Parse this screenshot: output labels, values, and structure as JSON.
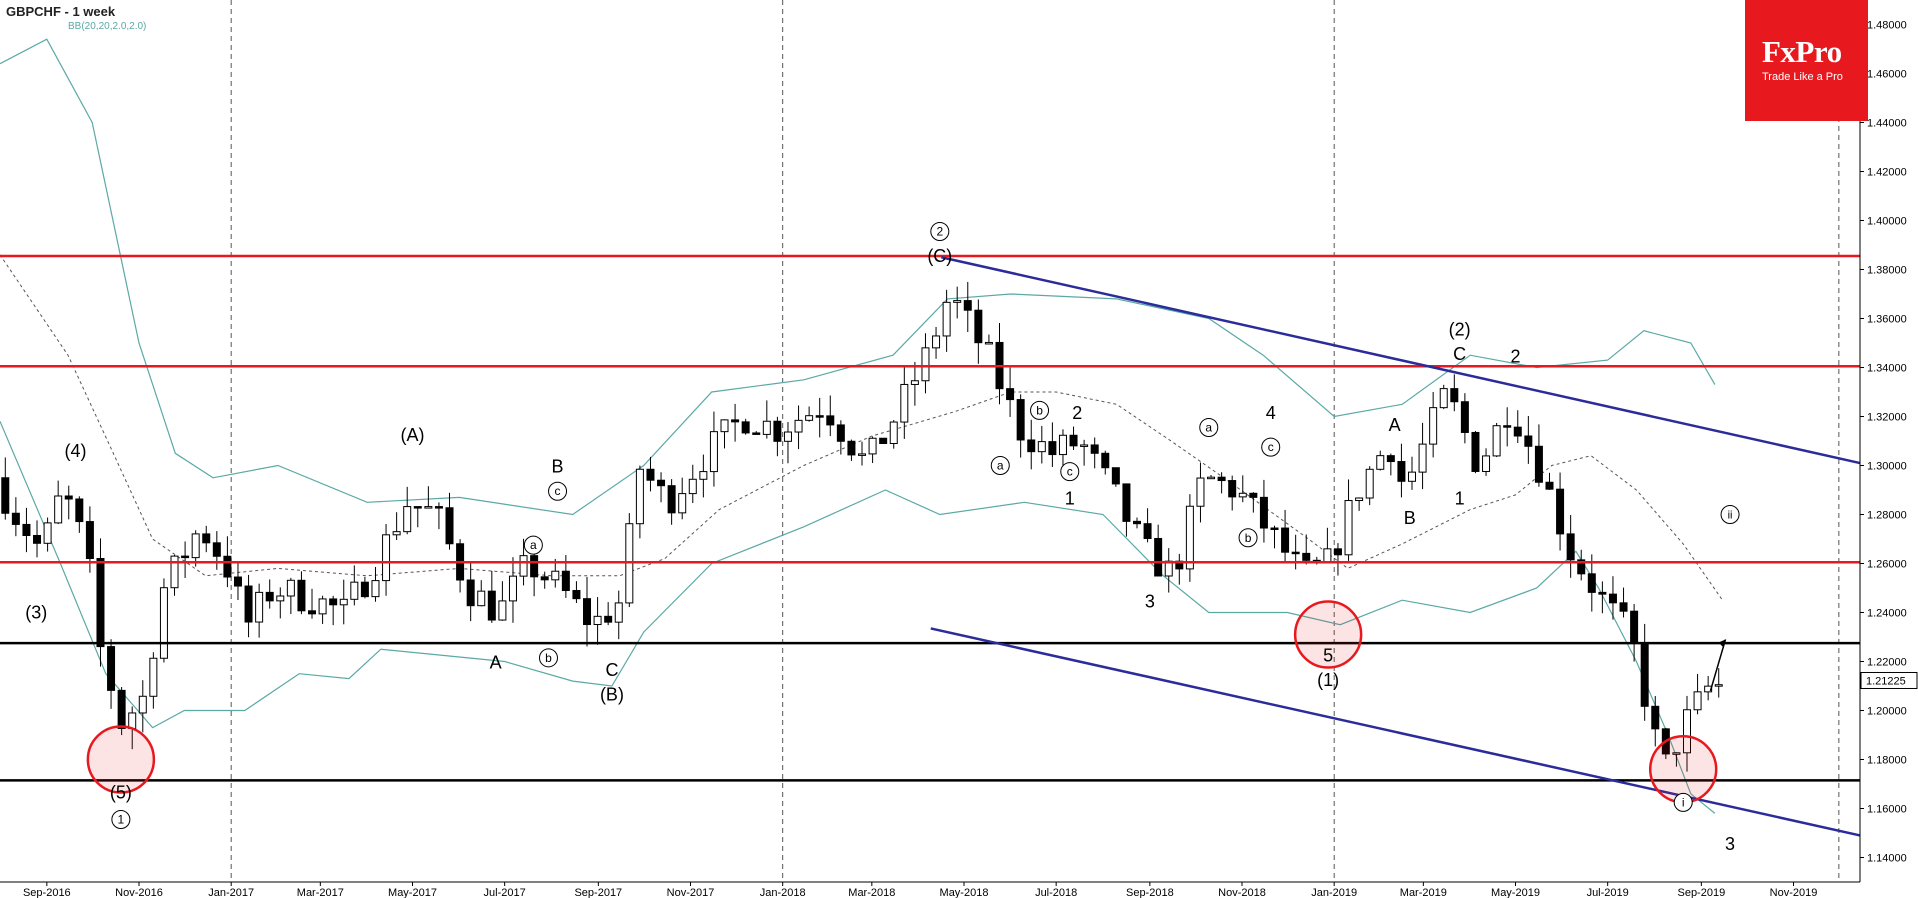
{
  "header": {
    "symbol": "GBPCHF - 1 week",
    "indicator": "BB(20,20,2.0,2.0)"
  },
  "logo": {
    "brand": "FxPro",
    "tagline": "Trade Like a Pro"
  },
  "colors": {
    "red_lines": "#e8191e",
    "black_lines": "#000000",
    "channel": "#2b2b9a",
    "bollinger": "#5aa9a5",
    "midband": "#555555",
    "logo_bg": "#e8191e"
  },
  "chart_data": {
    "type": "candlestick",
    "title": "GBPCHF - 1 week",
    "ylim": [
      1.13,
      1.49
    ],
    "y_ticks": [
      "1.48000",
      "1.46000",
      "1.44000",
      "1.42000",
      "1.40000",
      "1.38000",
      "1.36000",
      "1.34000",
      "1.32000",
      "1.30000",
      "1.28000",
      "1.26000",
      "1.24000",
      "1.22000",
      "1.20000",
      "1.18000",
      "1.16000",
      "1.14000"
    ],
    "x_range": [
      "2016-08-01",
      "2019-12-15"
    ],
    "x_ticks": [
      {
        "label": "Sep-2016",
        "date": "2016-09-01"
      },
      {
        "label": "Nov-2016",
        "date": "2016-11-01"
      },
      {
        "label": "Jan-2017",
        "date": "2017-01-01"
      },
      {
        "label": "Mar-2017",
        "date": "2017-03-01"
      },
      {
        "label": "May-2017",
        "date": "2017-05-01"
      },
      {
        "label": "Jul-2017",
        "date": "2017-07-01"
      },
      {
        "label": "Sep-2017",
        "date": "2017-09-01"
      },
      {
        "label": "Nov-2017",
        "date": "2017-11-01"
      },
      {
        "label": "Jan-2018",
        "date": "2018-01-01"
      },
      {
        "label": "Mar-2018",
        "date": "2018-03-01"
      },
      {
        "label": "May-2018",
        "date": "2018-05-01"
      },
      {
        "label": "Jul-2018",
        "date": "2018-07-01"
      },
      {
        "label": "Sep-2018",
        "date": "2018-09-01"
      },
      {
        "label": "Nov-2018",
        "date": "2018-11-01"
      },
      {
        "label": "Jan-2019",
        "date": "2019-01-01"
      },
      {
        "label": "Mar-2019",
        "date": "2019-03-01"
      },
      {
        "label": "May-2019",
        "date": "2019-05-01"
      },
      {
        "label": "Jul-2019",
        "date": "2019-07-01"
      },
      {
        "label": "Sep-2019",
        "date": "2019-09-01"
      },
      {
        "label": "Nov-2019",
        "date": "2019-11-01"
      }
    ],
    "vertical_dashed_lines": [
      "2017-01-01",
      "2018-01-01",
      "2019-01-01",
      "2019-12-01"
    ],
    "current_price": "1.21225",
    "price_path": [
      [
        "2016-08-01",
        1.295
      ],
      [
        "2016-08-15",
        1.28
      ],
      [
        "2016-09-01",
        1.265
      ],
      [
        "2016-09-15",
        1.29
      ],
      [
        "2016-10-01",
        1.265
      ],
      [
        "2016-10-10",
        1.225
      ],
      [
        "2016-10-24",
        1.195
      ],
      [
        "2016-11-07",
        1.205
      ],
      [
        "2016-11-21",
        1.25
      ],
      [
        "2016-12-15",
        1.275
      ],
      [
        "2017-01-01",
        1.26
      ],
      [
        "2017-01-15",
        1.235
      ],
      [
        "2017-02-01",
        1.25
      ],
      [
        "2017-03-01",
        1.245
      ],
      [
        "2017-03-20",
        1.24
      ],
      [
        "2017-04-10",
        1.26
      ],
      [
        "2017-05-01",
        1.285
      ],
      [
        "2017-05-20",
        1.28
      ],
      [
        "2017-06-10",
        1.25
      ],
      [
        "2017-07-01",
        1.24
      ],
      [
        "2017-07-20",
        1.26
      ],
      [
        "2017-08-10",
        1.25
      ],
      [
        "2017-09-01",
        1.235
      ],
      [
        "2017-09-20",
        1.245
      ],
      [
        "2017-10-01",
        1.3
      ],
      [
        "2017-10-20",
        1.285
      ],
      [
        "2017-11-15",
        1.305
      ],
      [
        "2017-12-10",
        1.32
      ],
      [
        "2018-01-01",
        1.315
      ],
      [
        "2018-02-01",
        1.325
      ],
      [
        "2018-03-01",
        1.3
      ],
      [
        "2018-03-20",
        1.32
      ],
      [
        "2018-04-10",
        1.345
      ],
      [
        "2018-04-25",
        1.37
      ],
      [
        "2018-05-20",
        1.345
      ],
      [
        "2018-06-10",
        1.315
      ],
      [
        "2018-07-01",
        1.305
      ],
      [
        "2018-07-20",
        1.31
      ],
      [
        "2018-08-10",
        1.29
      ],
      [
        "2018-09-01",
        1.265
      ],
      [
        "2018-09-20",
        1.255
      ],
      [
        "2018-10-10",
        1.295
      ],
      [
        "2018-11-01",
        1.29
      ],
      [
        "2018-11-20",
        1.275
      ],
      [
        "2018-12-15",
        1.255
      ],
      [
        "2019-01-01",
        1.26
      ],
      [
        "2019-01-20",
        1.29
      ],
      [
        "2019-02-10",
        1.31
      ],
      [
        "2019-02-20",
        1.29
      ],
      [
        "2019-03-20",
        1.33
      ],
      [
        "2019-04-10",
        1.3
      ],
      [
        "2019-05-01",
        1.325
      ],
      [
        "2019-05-20",
        1.3
      ],
      [
        "2019-06-10",
        1.265
      ],
      [
        "2019-07-01",
        1.245
      ],
      [
        "2019-07-20",
        1.23
      ],
      [
        "2019-08-10",
        1.175
      ],
      [
        "2019-08-25",
        1.195
      ],
      [
        "2019-09-10",
        1.21
      ]
    ],
    "horizontal_levels": [
      {
        "price": 1.3855,
        "color": "red"
      },
      {
        "price": 1.3405,
        "color": "red"
      },
      {
        "price": 1.2605,
        "color": "red"
      },
      {
        "price": 1.2275,
        "color": "black"
      },
      {
        "price": 1.1715,
        "color": "black"
      }
    ],
    "channel_lines": [
      {
        "from": [
          "2018-04-16",
          1.385
        ],
        "to": [
          "2019-12-15",
          1.301
        ]
      },
      {
        "from": [
          "2018-04-09",
          1.2335
        ],
        "to": [
          "2019-12-15",
          1.149
        ]
      }
    ],
    "bollinger_upper": [
      [
        "2016-08-01",
        1.464
      ],
      [
        "2016-09-01",
        1.474
      ],
      [
        "2016-10-01",
        1.44
      ],
      [
        "2016-11-01",
        1.35
      ],
      [
        "2016-11-25",
        1.305
      ],
      [
        "2016-12-20",
        1.295
      ],
      [
        "2017-02-01",
        1.3
      ],
      [
        "2017-04-01",
        1.285
      ],
      [
        "2017-06-01",
        1.287
      ],
      [
        "2017-08-15",
        1.28
      ],
      [
        "2017-10-01",
        1.3
      ],
      [
        "2017-11-15",
        1.33
      ],
      [
        "2018-01-15",
        1.335
      ],
      [
        "2018-03-15",
        1.345
      ],
      [
        "2018-04-20",
        1.368
      ],
      [
        "2018-06-01",
        1.37
      ],
      [
        "2018-08-10",
        1.368
      ],
      [
        "2018-10-10",
        1.36
      ],
      [
        "2018-11-15",
        1.345
      ],
      [
        "2019-01-01",
        1.32
      ],
      [
        "2019-02-15",
        1.325
      ],
      [
        "2019-04-01",
        1.345
      ],
      [
        "2019-05-15",
        1.34
      ],
      [
        "2019-07-01",
        1.343
      ],
      [
        "2019-07-25",
        1.355
      ],
      [
        "2019-08-25",
        1.35
      ],
      [
        "2019-09-10",
        1.333
      ]
    ],
    "bollinger_lower": [
      [
        "2016-08-01",
        1.318
      ],
      [
        "2016-09-10",
        1.26
      ],
      [
        "2016-10-10",
        1.215
      ],
      [
        "2016-11-10",
        1.193
      ],
      [
        "2016-12-01",
        1.2
      ],
      [
        "2017-01-10",
        1.2
      ],
      [
        "2017-02-15",
        1.215
      ],
      [
        "2017-03-20",
        1.213
      ],
      [
        "2017-04-10",
        1.225
      ],
      [
        "2017-07-01",
        1.22
      ],
      [
        "2017-08-15",
        1.212
      ],
      [
        "2017-09-10",
        1.21
      ],
      [
        "2017-10-01",
        1.232
      ],
      [
        "2017-11-15",
        1.26
      ],
      [
        "2018-01-15",
        1.275
      ],
      [
        "2018-03-10",
        1.29
      ],
      [
        "2018-04-15",
        1.28
      ],
      [
        "2018-06-10",
        1.285
      ],
      [
        "2018-08-01",
        1.28
      ],
      [
        "2018-09-10",
        1.255
      ],
      [
        "2018-10-10",
        1.24
      ],
      [
        "2018-12-01",
        1.24
      ],
      [
        "2019-01-05",
        1.235
      ],
      [
        "2019-02-15",
        1.245
      ],
      [
        "2019-04-01",
        1.24
      ],
      [
        "2019-05-15",
        1.25
      ],
      [
        "2019-06-10",
        1.265
      ],
      [
        "2019-06-25",
        1.25
      ],
      [
        "2019-07-20",
        1.22
      ],
      [
        "2019-08-10",
        1.19
      ],
      [
        "2019-08-25",
        1.166
      ],
      [
        "2019-09-10",
        1.158
      ]
    ],
    "bollinger_mid": [
      [
        "2016-08-01",
        1.386
      ],
      [
        "2016-09-15",
        1.345
      ],
      [
        "2016-10-15",
        1.305
      ],
      [
        "2016-11-10",
        1.27
      ],
      [
        "2016-12-15",
        1.255
      ],
      [
        "2017-02-01",
        1.258
      ],
      [
        "2017-04-01",
        1.255
      ],
      [
        "2017-06-01",
        1.258
      ],
      [
        "2017-08-01",
        1.255
      ],
      [
        "2017-09-15",
        1.255
      ],
      [
        "2017-10-15",
        1.262
      ],
      [
        "2017-11-20",
        1.282
      ],
      [
        "2018-01-15",
        1.3
      ],
      [
        "2018-03-01",
        1.312
      ],
      [
        "2018-04-25",
        1.322
      ],
      [
        "2018-06-01",
        1.33
      ],
      [
        "2018-07-01",
        1.33
      ],
      [
        "2018-08-10",
        1.325
      ],
      [
        "2018-09-15",
        1.31
      ],
      [
        "2018-10-20",
        1.295
      ],
      [
        "2018-12-15",
        1.27
      ],
      [
        "2019-01-10",
        1.258
      ],
      [
        "2019-02-15",
        1.268
      ],
      [
        "2019-04-01",
        1.282
      ],
      [
        "2019-05-01",
        1.288
      ],
      [
        "2019-05-25",
        1.3
      ],
      [
        "2019-06-20",
        1.304
      ],
      [
        "2019-07-20",
        1.29
      ],
      [
        "2019-08-20",
        1.268
      ],
      [
        "2019-09-15",
        1.245
      ]
    ],
    "highlight_circles": [
      {
        "date": "2016-10-20",
        "price": 1.18
      },
      {
        "date": "2018-12-28",
        "price": 1.231
      },
      {
        "date": "2019-08-20",
        "price": 1.176
      }
    ],
    "wave_labels": [
      {
        "text": "(4)",
        "date": "2016-09-20",
        "price": 1.306,
        "circled": false
      },
      {
        "text": "(3)",
        "date": "2016-08-25",
        "price": 1.24,
        "circled": false
      },
      {
        "text": "(5)",
        "date": "2016-10-20",
        "price": 1.1665,
        "circled": false
      },
      {
        "text": "1",
        "date": "2016-10-20",
        "price": 1.1555,
        "circled": true
      },
      {
        "text": "(A)",
        "date": "2017-05-01",
        "price": 1.3125,
        "circled": false
      },
      {
        "text": "B",
        "date": "2017-08-05",
        "price": 1.2995,
        "circled": false
      },
      {
        "text": "c",
        "date": "2017-08-05",
        "price": 1.2895,
        "circled": true
      },
      {
        "text": "a",
        "date": "2017-07-20",
        "price": 1.2675,
        "circled": true
      },
      {
        "text": "A",
        "date": "2017-06-25",
        "price": 1.2195,
        "circled": false
      },
      {
        "text": "b",
        "date": "2017-07-30",
        "price": 1.2215,
        "circled": true
      },
      {
        "text": "C",
        "date": "2017-09-10",
        "price": 1.2165,
        "circled": false
      },
      {
        "text": "(B)",
        "date": "2017-09-10",
        "price": 1.2065,
        "circled": false
      },
      {
        "text": "2",
        "date": "2018-04-15",
        "price": 1.3955,
        "circled": true
      },
      {
        "text": "(C)",
        "date": "2018-04-15",
        "price": 1.3855,
        "circled": false
      },
      {
        "text": "a",
        "date": "2018-05-25",
        "price": 1.3,
        "circled": true
      },
      {
        "text": "b",
        "date": "2018-06-20",
        "price": 1.3225,
        "circled": true
      },
      {
        "text": "2",
        "date": "2018-07-15",
        "price": 1.3215,
        "circled": false
      },
      {
        "text": "c",
        "date": "2018-07-10",
        "price": 1.2975,
        "circled": true
      },
      {
        "text": "1",
        "date": "2018-07-10",
        "price": 1.2865,
        "circled": false
      },
      {
        "text": "3",
        "date": "2018-09-01",
        "price": 1.2445,
        "circled": false
      },
      {
        "text": "a",
        "date": "2018-10-10",
        "price": 1.3155,
        "circled": true
      },
      {
        "text": "4",
        "date": "2018-11-20",
        "price": 1.3215,
        "circled": false
      },
      {
        "text": "c",
        "date": "2018-11-20",
        "price": 1.3075,
        "circled": true
      },
      {
        "text": "b",
        "date": "2018-11-05",
        "price": 1.2705,
        "circled": true
      },
      {
        "text": "5",
        "date": "2018-12-28",
        "price": 1.2225,
        "circled": false
      },
      {
        "text": "(1)",
        "date": "2018-12-28",
        "price": 1.2125,
        "circled": false
      },
      {
        "text": "A",
        "date": "2019-02-10",
        "price": 1.3165,
        "circled": false
      },
      {
        "text": "B",
        "date": "2019-02-20",
        "price": 1.2785,
        "circled": false
      },
      {
        "text": "1",
        "date": "2019-03-25",
        "price": 1.2865,
        "circled": false
      },
      {
        "text": "(2)",
        "date": "2019-03-25",
        "price": 1.3555,
        "circled": false
      },
      {
        "text": "C",
        "date": "2019-03-25",
        "price": 1.3455,
        "circled": false
      },
      {
        "text": "2",
        "date": "2019-05-01",
        "price": 1.3445,
        "circled": false
      },
      {
        "text": "ii",
        "date": "2019-09-20",
        "price": 1.28,
        "circled": true
      },
      {
        "text": "i",
        "date": "2019-08-20",
        "price": 1.1625,
        "circled": true
      },
      {
        "text": "3",
        "date": "2019-09-20",
        "price": 1.1455,
        "circled": false
      }
    ],
    "projection_arrow": {
      "from": [
        "2019-09-07",
        1.208
      ],
      "to": [
        "2019-09-17",
        1.229
      ]
    }
  }
}
